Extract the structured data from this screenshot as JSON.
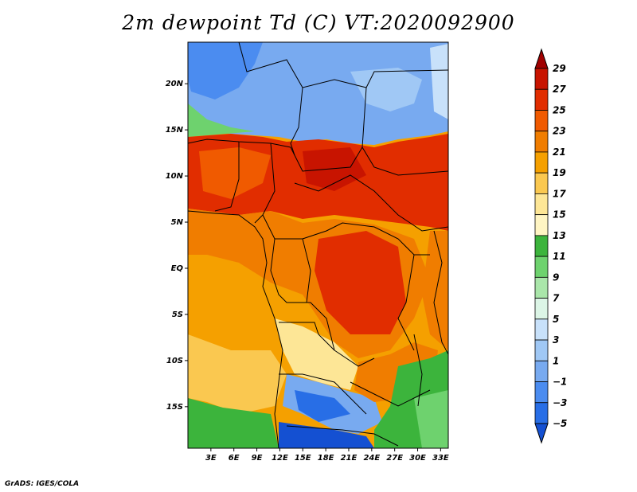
{
  "title": "2m dewpoint Td (C) VT:2020092900",
  "footer": "GrADS: IGES/COLA",
  "map": {
    "lat_labels": [
      "20N",
      "15N",
      "10N",
      "5N",
      "EQ",
      "5S",
      "10S",
      "15S"
    ],
    "lon_labels": [
      "3E",
      "6E",
      "9E",
      "12E",
      "15E",
      "18E",
      "21E",
      "24E",
      "27E",
      "30E",
      "33E"
    ],
    "lat_values": [
      20,
      15,
      10,
      5,
      0,
      -5,
      -10,
      -15
    ],
    "lon_values": [
      3,
      6,
      9,
      12,
      15,
      18,
      21,
      24,
      27,
      30,
      33
    ],
    "lat_range": [
      -19.5,
      24.5
    ],
    "lon_range": [
      0,
      34
    ]
  },
  "colorbar": {
    "labels": [
      "29",
      "27",
      "25",
      "23",
      "21",
      "19",
      "17",
      "15",
      "13",
      "11",
      "9",
      "7",
      "5",
      "3",
      "1",
      "−1",
      "−3",
      "−5"
    ],
    "colors": [
      "#a00000",
      "#c81400",
      "#e12d00",
      "#f05a00",
      "#f07d00",
      "#f5a000",
      "#fac850",
      "#fde696",
      "#fff5c3",
      "#3cb43c",
      "#6ed26e",
      "#aae6aa",
      "#dcf5e6",
      "#c8e1fa",
      "#a0c8f5",
      "#78aaf0",
      "#4b8cf0",
      "#286ee6",
      "#1450d2"
    ]
  }
}
